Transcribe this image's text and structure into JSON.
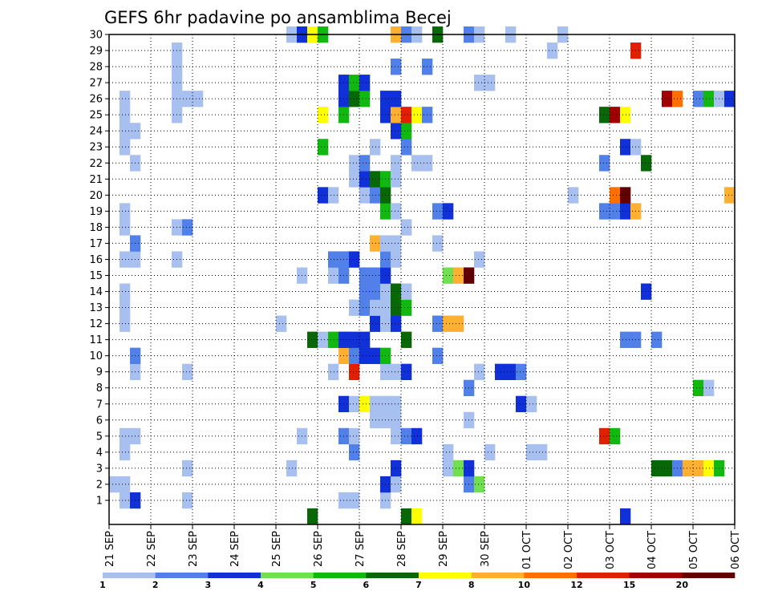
{
  "chart_data": {
    "type": "heatmap",
    "title": "GEFS 6hr padavine po ansamblima Becej",
    "xlabel": "",
    "ylabel": "",
    "x_tick_labels": [
      "21 SEP",
      "22 SEP",
      "23 SEP",
      "24 SEP",
      "25 SEP",
      "26 SEP",
      "27 SEP",
      "28 SEP",
      "29 SEP",
      "30 SEP",
      "01 OCT",
      "02 OCT",
      "03 OCT",
      "04 OCT",
      "05 OCT",
      "06 OCT"
    ],
    "y_tick_labels": [
      "1",
      "2",
      "3",
      "4",
      "5",
      "6",
      "7",
      "8",
      "9",
      "10",
      "11",
      "12",
      "13",
      "14",
      "15",
      "16",
      "17",
      "18",
      "19",
      "20",
      "21",
      "22",
      "23",
      "24",
      "25",
      "26",
      "27",
      "28",
      "29",
      "30"
    ],
    "xlim_days": [
      0,
      15
    ],
    "ylim_members": [
      0,
      30
    ],
    "x_step_hours": 6,
    "grid": "dotted",
    "legend_placement": "bottom",
    "legend_levels": [
      "1",
      "2",
      "3",
      "4",
      "5",
      "6",
      "7",
      "8",
      "10",
      "12",
      "15",
      "20"
    ],
    "level_colors": [
      "#a8c0f0",
      "#5080e8",
      "#1030d8",
      "#70e050",
      "#10b810",
      "#086808",
      "#ffff00",
      "#ffb030",
      "#ff7000",
      "#e02000",
      "#a00000",
      "#600000"
    ],
    "cells_note": "each cell: [time step index from 21 SEP 00z, ensemble member, color class index]",
    "cells": [
      [
        1,
        1,
        0
      ],
      [
        2,
        1,
        2
      ],
      [
        7,
        1,
        0
      ],
      [
        22,
        1,
        0
      ],
      [
        23,
        1,
        0
      ],
      [
        26,
        1,
        0
      ],
      [
        0,
        2,
        0
      ],
      [
        1,
        2,
        0
      ],
      [
        26,
        2,
        2
      ],
      [
        27,
        2,
        0
      ],
      [
        34,
        2,
        1
      ],
      [
        35,
        2,
        3
      ],
      [
        7,
        3,
        0
      ],
      [
        17,
        3,
        0
      ],
      [
        27,
        3,
        2
      ],
      [
        32,
        3,
        0
      ],
      [
        33,
        3,
        3
      ],
      [
        34,
        3,
        2
      ],
      [
        52,
        3,
        5
      ],
      [
        53,
        3,
        5
      ],
      [
        54,
        3,
        1
      ],
      [
        55,
        3,
        7
      ],
      [
        56,
        3,
        7
      ],
      [
        57,
        3,
        6
      ],
      [
        58,
        3,
        4
      ],
      [
        1,
        4,
        0
      ],
      [
        23,
        4,
        1
      ],
      [
        32,
        4,
        0
      ],
      [
        36,
        4,
        0
      ],
      [
        40,
        4,
        0
      ],
      [
        41,
        4,
        0
      ],
      [
        1,
        5,
        0
      ],
      [
        2,
        5,
        0
      ],
      [
        18,
        5,
        0
      ],
      [
        22,
        5,
        1
      ],
      [
        23,
        5,
        0
      ],
      [
        27,
        5,
        0
      ],
      [
        28,
        5,
        1
      ],
      [
        29,
        5,
        2
      ],
      [
        47,
        5,
        9
      ],
      [
        48,
        5,
        4
      ],
      [
        25,
        6,
        0
      ],
      [
        26,
        6,
        0
      ],
      [
        27,
        6,
        0
      ],
      [
        34,
        6,
        0
      ],
      [
        22,
        7,
        2
      ],
      [
        23,
        7,
        0
      ],
      [
        24,
        7,
        6
      ],
      [
        25,
        7,
        0
      ],
      [
        26,
        7,
        0
      ],
      [
        27,
        7,
        0
      ],
      [
        39,
        7,
        2
      ],
      [
        40,
        7,
        0
      ],
      [
        34,
        8,
        1
      ],
      [
        56,
        8,
        4
      ],
      [
        57,
        8,
        0
      ],
      [
        2,
        9,
        0
      ],
      [
        7,
        9,
        0
      ],
      [
        21,
        9,
        0
      ],
      [
        23,
        9,
        9
      ],
      [
        26,
        9,
        0
      ],
      [
        27,
        9,
        0
      ],
      [
        28,
        9,
        2
      ],
      [
        35,
        9,
        0
      ],
      [
        37,
        9,
        2
      ],
      [
        38,
        9,
        2
      ],
      [
        39,
        9,
        1
      ],
      [
        2,
        10,
        1
      ],
      [
        22,
        10,
        7
      ],
      [
        23,
        10,
        1
      ],
      [
        24,
        10,
        2
      ],
      [
        25,
        10,
        2
      ],
      [
        26,
        10,
        4
      ],
      [
        31,
        10,
        1
      ],
      [
        19,
        11,
        5
      ],
      [
        20,
        11,
        0
      ],
      [
        21,
        11,
        4
      ],
      [
        22,
        11,
        2
      ],
      [
        23,
        11,
        2
      ],
      [
        24,
        11,
        2
      ],
      [
        28,
        11,
        5
      ],
      [
        49,
        11,
        1
      ],
      [
        50,
        11,
        1
      ],
      [
        52,
        11,
        1
      ],
      [
        1,
        12,
        0
      ],
      [
        16,
        12,
        0
      ],
      [
        25,
        12,
        2
      ],
      [
        26,
        12,
        0
      ],
      [
        27,
        12,
        2
      ],
      [
        31,
        12,
        1
      ],
      [
        32,
        12,
        7
      ],
      [
        33,
        12,
        7
      ],
      [
        1,
        13,
        0
      ],
      [
        23,
        13,
        0
      ],
      [
        24,
        13,
        1
      ],
      [
        25,
        13,
        0
      ],
      [
        26,
        13,
        0
      ],
      [
        27,
        13,
        5
      ],
      [
        28,
        13,
        4
      ],
      [
        1,
        14,
        0
      ],
      [
        24,
        14,
        1
      ],
      [
        25,
        14,
        1
      ],
      [
        26,
        14,
        0
      ],
      [
        27,
        14,
        5
      ],
      [
        28,
        14,
        0
      ],
      [
        51,
        14,
        2
      ],
      [
        18,
        15,
        0
      ],
      [
        21,
        15,
        0
      ],
      [
        22,
        15,
        1
      ],
      [
        24,
        15,
        1
      ],
      [
        25,
        15,
        1
      ],
      [
        26,
        15,
        2
      ],
      [
        32,
        15,
        3
      ],
      [
        33,
        15,
        7
      ],
      [
        34,
        15,
        11
      ],
      [
        1,
        16,
        0
      ],
      [
        2,
        16,
        0
      ],
      [
        6,
        16,
        0
      ],
      [
        21,
        16,
        1
      ],
      [
        22,
        16,
        1
      ],
      [
        23,
        16,
        2
      ],
      [
        26,
        16,
        1
      ],
      [
        27,
        16,
        0
      ],
      [
        35,
        16,
        0
      ],
      [
        2,
        17,
        1
      ],
      [
        25,
        17,
        7
      ],
      [
        26,
        17,
        0
      ],
      [
        27,
        17,
        0
      ],
      [
        31,
        17,
        0
      ],
      [
        1,
        18,
        0
      ],
      [
        6,
        18,
        0
      ],
      [
        7,
        18,
        1
      ],
      [
        28,
        18,
        0
      ],
      [
        1,
        19,
        0
      ],
      [
        26,
        19,
        4
      ],
      [
        27,
        19,
        0
      ],
      [
        31,
        19,
        1
      ],
      [
        32,
        19,
        2
      ],
      [
        47,
        19,
        1
      ],
      [
        48,
        19,
        1
      ],
      [
        49,
        19,
        2
      ],
      [
        50,
        19,
        7
      ],
      [
        20,
        20,
        2
      ],
      [
        21,
        20,
        0
      ],
      [
        24,
        20,
        0
      ],
      [
        25,
        20,
        1
      ],
      [
        26,
        20,
        5
      ],
      [
        44,
        20,
        0
      ],
      [
        48,
        20,
        8
      ],
      [
        49,
        20,
        11
      ],
      [
        59,
        20,
        7
      ],
      [
        23,
        21,
        0
      ],
      [
        24,
        21,
        2
      ],
      [
        25,
        21,
        5
      ],
      [
        26,
        21,
        4
      ],
      [
        27,
        21,
        0
      ],
      [
        2,
        22,
        0
      ],
      [
        23,
        22,
        0
      ],
      [
        24,
        22,
        1
      ],
      [
        27,
        22,
        0
      ],
      [
        29,
        22,
        0
      ],
      [
        30,
        22,
        0
      ],
      [
        47,
        22,
        1
      ],
      [
        51,
        22,
        5
      ],
      [
        1,
        23,
        0
      ],
      [
        20,
        23,
        4
      ],
      [
        25,
        23,
        0
      ],
      [
        28,
        23,
        1
      ],
      [
        49,
        23,
        2
      ],
      [
        50,
        23,
        0
      ],
      [
        1,
        24,
        0
      ],
      [
        2,
        24,
        0
      ],
      [
        27,
        24,
        2
      ],
      [
        28,
        24,
        4
      ],
      [
        1,
        25,
        0
      ],
      [
        6,
        25,
        0
      ],
      [
        20,
        25,
        6
      ],
      [
        22,
        25,
        4
      ],
      [
        26,
        25,
        2
      ],
      [
        27,
        25,
        7
      ],
      [
        28,
        25,
        9
      ],
      [
        29,
        25,
        6
      ],
      [
        30,
        25,
        1
      ],
      [
        47,
        25,
        5
      ],
      [
        48,
        25,
        10
      ],
      [
        49,
        25,
        6
      ],
      [
        1,
        26,
        0
      ],
      [
        6,
        26,
        0
      ],
      [
        7,
        26,
        0
      ],
      [
        8,
        26,
        0
      ],
      [
        22,
        26,
        2
      ],
      [
        23,
        26,
        5
      ],
      [
        24,
        26,
        4
      ],
      [
        26,
        26,
        2
      ],
      [
        27,
        26,
        2
      ],
      [
        53,
        26,
        10
      ],
      [
        54,
        26,
        8
      ],
      [
        56,
        26,
        1
      ],
      [
        57,
        26,
        4
      ],
      [
        58,
        26,
        0
      ],
      [
        59,
        26,
        2
      ],
      [
        6,
        27,
        0
      ],
      [
        22,
        27,
        2
      ],
      [
        23,
        27,
        4
      ],
      [
        24,
        27,
        2
      ],
      [
        35,
        27,
        0
      ],
      [
        36,
        27,
        0
      ],
      [
        6,
        28,
        0
      ],
      [
        27,
        28,
        1
      ],
      [
        30,
        28,
        1
      ],
      [
        6,
        29,
        0
      ],
      [
        42,
        29,
        0
      ],
      [
        50,
        29,
        9
      ],
      [
        17,
        30,
        0
      ],
      [
        18,
        30,
        2
      ],
      [
        19,
        30,
        6
      ],
      [
        20,
        30,
        4
      ],
      [
        27,
        30,
        7
      ],
      [
        28,
        30,
        1
      ],
      [
        29,
        30,
        0
      ],
      [
        31,
        30,
        5
      ],
      [
        34,
        30,
        1
      ],
      [
        35,
        30,
        0
      ],
      [
        38,
        30,
        0
      ],
      [
        43,
        30,
        0
      ],
      [
        19,
        0,
        5
      ],
      [
        28,
        0,
        5
      ],
      [
        29,
        0,
        6
      ],
      [
        49,
        0,
        2
      ]
    ]
  }
}
